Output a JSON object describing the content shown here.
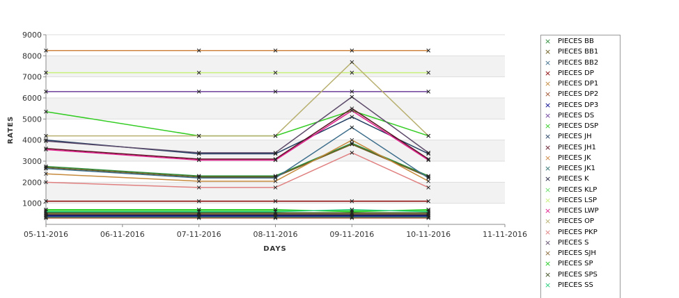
{
  "chart_data": {
    "type": "line",
    "xlabel": "DAYS",
    "ylabel": "RATES",
    "ylim": [
      0,
      9000
    ],
    "yticks": [
      1000,
      2000,
      3000,
      4000,
      5000,
      6000,
      7000,
      8000,
      9000
    ],
    "xticks": [
      "05-11-2016",
      "06-11-2016",
      "07-11-2016",
      "08-11-2016",
      "09-11-2016",
      "10-11-2016",
      "11-11-2016"
    ],
    "x": [
      "05-11-2016",
      "07-11-2016",
      "08-11-2016",
      "09-11-2016",
      "10-11-2016"
    ],
    "grid": true,
    "legend_position": "right",
    "series": [
      {
        "name": "PIECES BB",
        "color": "#2e8b3a",
        "values": [
          2750,
          2300,
          2300,
          3850,
          2300
        ]
      },
      {
        "name": "PIECES BB1",
        "color": "#6b5a1e",
        "values": [
          2700,
          2250,
          2250,
          3800,
          2250
        ]
      },
      {
        "name": "PIECES BB2",
        "color": "#3d6e8c",
        "values": [
          2650,
          2200,
          2200,
          4600,
          2200
        ]
      },
      {
        "name": "PIECES DP",
        "color": "#8b0000",
        "values": [
          1100,
          1100,
          1100,
          1100,
          1100
        ]
      },
      {
        "name": "PIECES DP1",
        "color": "#c68a3c",
        "values": [
          2400,
          2050,
          2050,
          4000,
          2050
        ]
      },
      {
        "name": "PIECES DP2",
        "color": "#a0522d",
        "values": [
          300,
          300,
          300,
          300,
          300
        ]
      },
      {
        "name": "PIECES DP3",
        "color": "#00008b",
        "values": [
          400,
          400,
          400,
          400,
          400
        ]
      },
      {
        "name": "PIECES DS",
        "color": "#6a3d9a",
        "values": [
          6300,
          6300,
          6300,
          6300,
          6300
        ]
      },
      {
        "name": "PIECES DSP",
        "color": "#33cc22",
        "values": [
          5350,
          4200,
          4200,
          5400,
          4200
        ]
      },
      {
        "name": "PIECES JH",
        "color": "#1e3a5f",
        "values": [
          4000,
          3350,
          3350,
          5100,
          3350
        ]
      },
      {
        "name": "PIECES JH1",
        "color": "#5a1020",
        "values": [
          3600,
          3100,
          3100,
          5500,
          3100
        ]
      },
      {
        "name": "PIECES JK",
        "color": "#cd853f",
        "values": [
          8250,
          8250,
          8250,
          8250,
          8250
        ]
      },
      {
        "name": "PIECES JK1",
        "color": "#2f6e6e",
        "values": [
          350,
          350,
          350,
          350,
          350
        ]
      },
      {
        "name": "PIECES K",
        "color": "#1a1a3a",
        "values": [
          450,
          450,
          450,
          450,
          450
        ]
      },
      {
        "name": "PIECES KLP",
        "color": "#66dd66",
        "values": [
          650,
          650,
          650,
          650,
          650
        ]
      },
      {
        "name": "PIECES LSP",
        "color": "#c8f07a",
        "values": [
          7200,
          7200,
          7200,
          7200,
          7200
        ]
      },
      {
        "name": "PIECES LWP",
        "color": "#e01e8c",
        "values": [
          3550,
          3050,
          3050,
          5400,
          3050
        ]
      },
      {
        "name": "PIECES OP",
        "color": "#b8b070",
        "values": [
          4200,
          4200,
          4200,
          7700,
          4200
        ]
      },
      {
        "name": "PIECES PKP",
        "color": "#e08080",
        "values": [
          2000,
          1750,
          1750,
          3400,
          1750
        ]
      },
      {
        "name": "PIECES S",
        "color": "#5e4b6b",
        "values": [
          3950,
          3400,
          3400,
          6050,
          3400
        ]
      },
      {
        "name": "PIECES SJH",
        "color": "#8b6b3a",
        "values": [
          500,
          500,
          500,
          500,
          500
        ]
      },
      {
        "name": "PIECES SP",
        "color": "#22cc22",
        "values": [
          700,
          700,
          700,
          600,
          700
        ]
      },
      {
        "name": "PIECES SPS",
        "color": "#3a4a1a",
        "values": [
          550,
          550,
          550,
          550,
          550
        ]
      },
      {
        "name": "PIECES SS",
        "color": "#22cc77",
        "values": [
          600,
          600,
          600,
          700,
          600
        ]
      }
    ]
  }
}
